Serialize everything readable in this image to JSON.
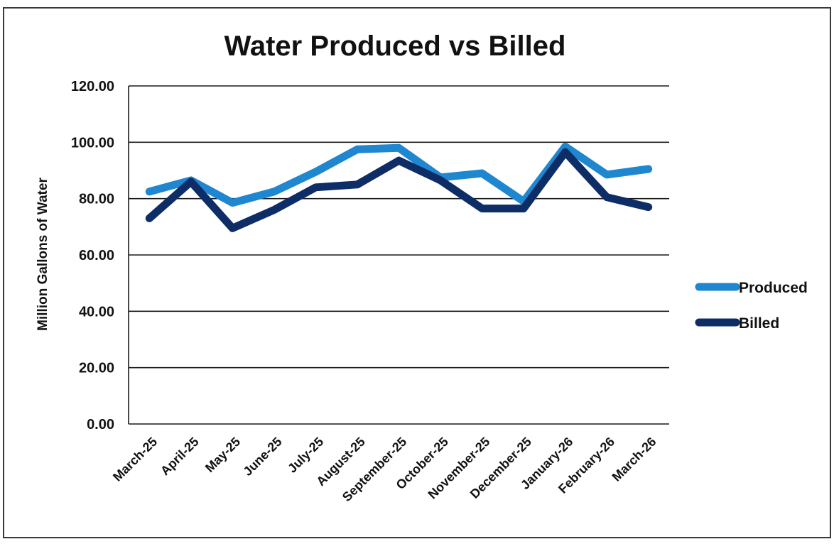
{
  "chart_data": {
    "type": "line",
    "title": "Water Produced vs Billed",
    "xlabel": "",
    "ylabel": "Million Gallons of Water",
    "ylim": [
      0,
      120
    ],
    "yticks": [
      "0.00",
      "20.00",
      "40.00",
      "60.00",
      "80.00",
      "100.00",
      "120.00"
    ],
    "grid": true,
    "legend_position": "right",
    "categories": [
      "March-25",
      "April-25",
      "May-25",
      "June-25",
      "July-25",
      "August-25",
      "September-25",
      "October-25",
      "November-25",
      "December-25",
      "January-26",
      "February-26",
      "March-26"
    ],
    "series": [
      {
        "name": "Produced",
        "color": "#1f86d0",
        "values": [
          82.5,
          86.5,
          78.5,
          82.5,
          89.5,
          97.5,
          98.0,
          87.5,
          89.0,
          79.0,
          98.5,
          88.5,
          90.5
        ]
      },
      {
        "name": "Billed",
        "color": "#0e2d66",
        "values": [
          73.0,
          86.0,
          69.5,
          76.0,
          84.0,
          85.0,
          93.5,
          86.5,
          76.5,
          76.5,
          96.5,
          80.5,
          77.0
        ]
      }
    ]
  }
}
